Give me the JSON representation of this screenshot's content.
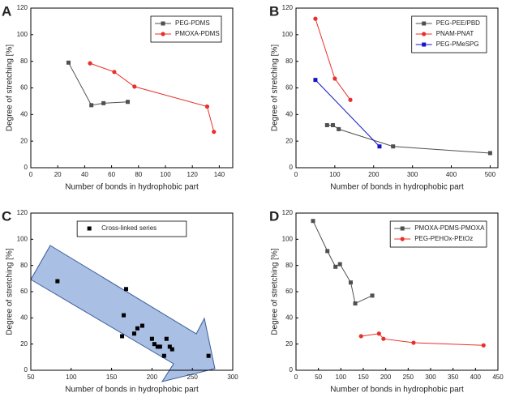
{
  "chart_data": [
    {
      "type": "line",
      "label": "A",
      "xlabel": "Number of bonds in hydrophobic part",
      "ylabel": "Degree of stretching [%]",
      "xlim": [
        0,
        150
      ],
      "xticks": [
        0,
        20,
        40,
        60,
        80,
        100,
        120,
        140
      ],
      "ylim": [
        0,
        120
      ],
      "yticks": [
        0,
        20,
        40,
        60,
        80,
        100,
        120
      ],
      "legend": "upper right",
      "series": [
        {
          "name": "PEG-PDMS",
          "color": "#505050",
          "marker": "square",
          "x": [
            28,
            45,
            54,
            72
          ],
          "values": [
            79,
            47,
            48.5,
            49.5
          ]
        },
        {
          "name": "PMOXA-PDMS",
          "color": "#e8302a",
          "marker": "circle",
          "x": [
            44,
            62,
            77,
            131,
            136
          ],
          "values": [
            78.5,
            72,
            61,
            46,
            27
          ]
        }
      ]
    },
    {
      "type": "line",
      "label": "B",
      "xlabel": "Number of bonds in hydrophobic part",
      "ylabel": "Degree of stretching [%]",
      "xlim": [
        0,
        520
      ],
      "xticks": [
        0,
        100,
        200,
        300,
        400,
        500
      ],
      "ylim": [
        0,
        120
      ],
      "yticks": [
        0,
        20,
        40,
        60,
        80,
        100,
        120
      ],
      "legend": "upper right",
      "series": [
        {
          "name": "PEG-PEE/PBD",
          "color": "#505050",
          "marker": "square",
          "x": [
            80,
            95,
            110,
            250,
            500
          ],
          "values": [
            32,
            32,
            29,
            16,
            11
          ]
        },
        {
          "name": "PNAM-PNAT",
          "color": "#e8302a",
          "marker": "circle",
          "x": [
            50,
            100,
            140
          ],
          "values": [
            112,
            67,
            51
          ]
        },
        {
          "name": "PEG-PMeSPG",
          "color": "#1414c8",
          "marker": "square",
          "x": [
            50,
            215
          ],
          "values": [
            66,
            16
          ]
        }
      ]
    },
    {
      "type": "scatter",
      "label": "C",
      "xlabel": "Number of bonds in hydrophobic part",
      "ylabel": "Degree of stretching [%]",
      "xlim": [
        50,
        300
      ],
      "xticks": [
        50,
        100,
        150,
        200,
        250,
        300
      ],
      "ylim": [
        0,
        120
      ],
      "yticks": [
        0,
        20,
        40,
        60,
        80,
        100,
        120
      ],
      "legend": "upper center",
      "series": [
        {
          "name": "Cross-linked series",
          "color": "#000000",
          "marker": "square",
          "x": [
            83,
            163,
            165,
            168,
            178,
            182,
            188,
            200,
            203,
            207,
            210,
            215,
            218,
            222,
            225,
            270
          ],
          "values": [
            68,
            26,
            42,
            62,
            28,
            32,
            34,
            24,
            20,
            18,
            18,
            11,
            24,
            18,
            16,
            11
          ]
        }
      ]
    },
    {
      "type": "line",
      "label": "D",
      "xlabel": "Number of bonds in hydrophobic part",
      "ylabel": "Degree of stretching [%]",
      "xlim": [
        0,
        450
      ],
      "xticks": [
        0,
        50,
        100,
        150,
        200,
        250,
        300,
        350,
        400,
        450
      ],
      "ylim": [
        0,
        120
      ],
      "yticks": [
        0,
        20,
        40,
        60,
        80,
        100,
        120
      ],
      "legend": "upper right",
      "series": [
        {
          "name": "PMOXA-PDMS-PMOXA",
          "color": "#505050",
          "marker": "square",
          "x": [
            38,
            70,
            88,
            98,
            122,
            132,
            170
          ],
          "values": [
            114,
            91,
            79,
            81,
            67,
            51,
            57
          ]
        },
        {
          "name": "PEG-PEHOx-PEtOz",
          "color": "#e8302a",
          "marker": "circle",
          "x": [
            145,
            185,
            195,
            262,
            418
          ],
          "values": [
            26,
            28,
            24,
            21,
            19
          ]
        }
      ]
    }
  ]
}
